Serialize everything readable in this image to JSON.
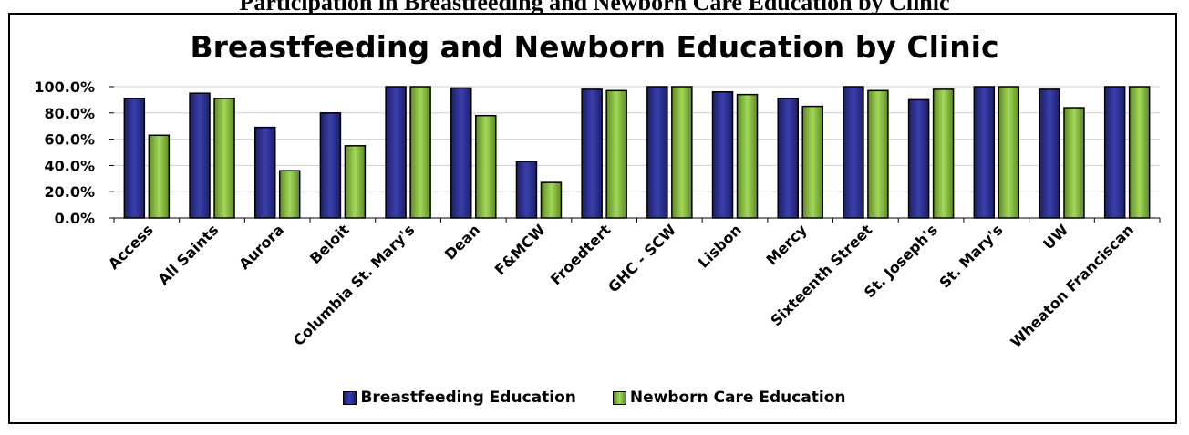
{
  "caption": "Participation in Breastfeeding and Newborn Care Education by Clinic",
  "chart_data": {
    "type": "bar",
    "title": "Breastfeeding and Newborn Education by Clinic",
    "categories": [
      "Access",
      "All Saints",
      "Aurora",
      "Beloit",
      "Columbia St. Mary's",
      "Dean",
      "F&MCW",
      "Froedtert",
      "GHC - SCW",
      "Lisbon",
      "Mercy",
      "Sixteenth Street",
      "St. Joseph's",
      "St. Mary's",
      "UW",
      "Wheaton Franciscan"
    ],
    "series": [
      {
        "name": "Breastfeeding Education",
        "color": "#2e3192",
        "values": [
          91,
          95,
          69,
          80,
          100,
          99,
          43,
          98,
          100,
          96,
          91,
          100,
          90,
          100,
          98,
          100
        ]
      },
      {
        "name": "Newborn Care Education",
        "color": "#8dc63f",
        "values": [
          63,
          91,
          36,
          55,
          100,
          78,
          27,
          97,
          100,
          94,
          85,
          97,
          98,
          100,
          84,
          100
        ]
      }
    ],
    "ylim": [
      0,
      100
    ],
    "yticks": [
      "0.0%",
      "20.0%",
      "40.0%",
      "60.0%",
      "80.0%",
      "100.0%"
    ],
    "grid": true,
    "legend_position": "bottom"
  }
}
